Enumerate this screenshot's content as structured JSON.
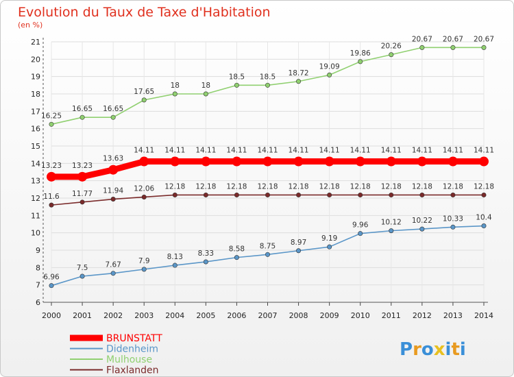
{
  "chart_data": {
    "type": "line",
    "title": "Evolution du Taux de Taxe d'Habitation",
    "subtitle": "(en %)",
    "xlabel": "",
    "ylabel": "",
    "x": [
      "2000",
      "2001",
      "2002",
      "2003",
      "2004",
      "2005",
      "2006",
      "2007",
      "2008",
      "2009",
      "2010",
      "2011",
      "2012",
      "2013",
      "2014"
    ],
    "ylim": [
      6,
      21
    ],
    "yticks": [
      6,
      7,
      8,
      9,
      10,
      11,
      12,
      13,
      14,
      15,
      16,
      17,
      18,
      19,
      20,
      21
    ],
    "grid": true,
    "legend_position": "bottom-left",
    "series": [
      {
        "name": "BRUNSTATT",
        "color": "#ff0000",
        "labels": [
          "13.23",
          "13.23",
          "13.63",
          "14.11",
          "14.11",
          "14.11",
          "14.11",
          "14.11",
          "14.11",
          "14.11",
          "14.11",
          "14.11",
          "14.11",
          "14.11",
          "14.11"
        ],
        "values": [
          13.23,
          13.23,
          13.63,
          14.11,
          14.11,
          14.11,
          14.11,
          14.11,
          14.11,
          14.11,
          14.11,
          14.11,
          14.11,
          14.11,
          14.11
        ]
      },
      {
        "name": "Didenheim",
        "color": "#5a96c8",
        "labels": [
          "6.96",
          "7.5",
          "7.67",
          "7.9",
          "8.13",
          "8.33",
          "8.58",
          "8.75",
          "8.97",
          "9.19",
          "9.96",
          "10.12",
          "10.22",
          "10.33",
          "10.4"
        ],
        "values": [
          6.96,
          7.5,
          7.67,
          7.9,
          8.13,
          8.33,
          8.58,
          8.75,
          8.97,
          9.19,
          9.96,
          10.12,
          10.22,
          10.33,
          10.4
        ]
      },
      {
        "name": "Mulhouse",
        "color": "#90d070",
        "labels": [
          "16.25",
          "16.65",
          "16.65",
          "17.65",
          "18",
          "18",
          "18.5",
          "18.5",
          "18.72",
          "19.09",
          "19.86",
          "20.26",
          "20.67",
          "20.67",
          "20.67"
        ],
        "values": [
          16.25,
          16.65,
          16.65,
          17.65,
          18,
          18,
          18.5,
          18.5,
          18.72,
          19.09,
          19.86,
          20.26,
          20.67,
          20.67,
          20.67
        ]
      },
      {
        "name": "Flaxlanden",
        "color": "#7a2a2a",
        "labels": [
          "11.6",
          "11.77",
          "11.94",
          "12.06",
          "12.18",
          "12.18",
          "12.18",
          "12.18",
          "12.18",
          "12.18",
          "12.18",
          "12.18",
          "12.18",
          "12.18",
          "12.18"
        ],
        "values": [
          11.6,
          11.77,
          11.94,
          12.06,
          12.18,
          12.18,
          12.18,
          12.18,
          12.18,
          12.18,
          12.18,
          12.18,
          12.18,
          12.18,
          12.18
        ]
      }
    ]
  },
  "logo": {
    "letters": [
      "P",
      "r",
      "o",
      "x",
      "i",
      "t",
      "i"
    ],
    "colors": [
      "#3a8fd8",
      "#e89a20",
      "#3a8fd8",
      "#e8c020",
      "#3a8fd8",
      "#e89a20",
      "#3a8fd8"
    ]
  }
}
